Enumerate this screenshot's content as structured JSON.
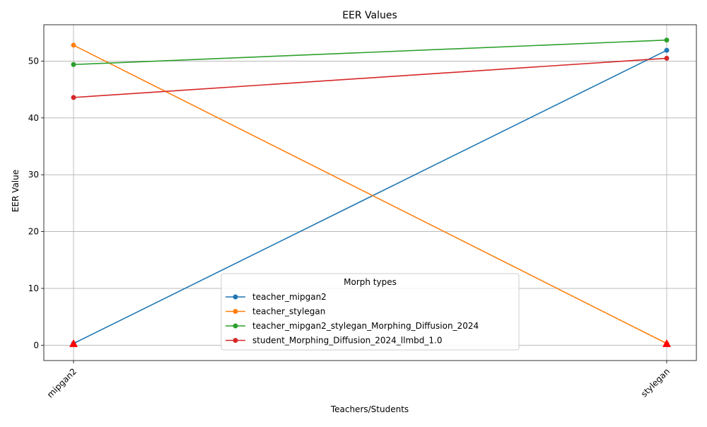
{
  "chart_data": {
    "type": "line",
    "title": "EER Values",
    "xlabel": "Teachers/Students",
    "ylabel": "EER Value",
    "categories": [
      "mipgan2",
      "stylegan"
    ],
    "ylim": [
      -2.7,
      56.4
    ],
    "yticks": [
      0,
      10,
      20,
      30,
      40,
      50
    ],
    "grid": true,
    "legend": {
      "title": "Morph types",
      "placement": "lower-center"
    },
    "series": [
      {
        "name": "teacher_mipgan2",
        "values": [
          0.3,
          51.9
        ],
        "color": "#1f77b4"
      },
      {
        "name": "teacher_stylegan",
        "values": [
          52.8,
          0.3
        ],
        "color": "#ff7f0e"
      },
      {
        "name": "teacher_mipgan2_stylegan_Morphing_Diffusion_2024",
        "values": [
          49.4,
          53.7
        ],
        "color": "#2ca02c"
      },
      {
        "name": "student_Morphing_Diffusion_2024_llmbd_1.0",
        "values": [
          43.6,
          50.5
        ],
        "color": "#d62728"
      }
    ],
    "markers": {
      "description": "red triangles at minimum EER points",
      "color": "#ff0000",
      "points": [
        {
          "category": "mipgan2",
          "value": 0.3
        },
        {
          "category": "stylegan",
          "value": 0.3
        }
      ]
    }
  }
}
